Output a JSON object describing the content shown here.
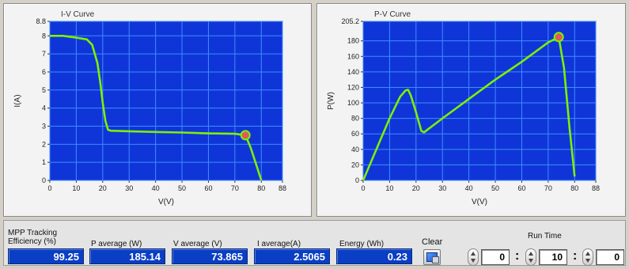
{
  "charts": {
    "iv": {
      "title": "I-V Curve",
      "xlabel": "V(V)",
      "ylabel": "I(A)",
      "x_ticks": [
        "0",
        "10",
        "20",
        "30",
        "40",
        "50",
        "60",
        "70",
        "80",
        "88"
      ],
      "y_ticks": [
        "0",
        "1",
        "2",
        "3",
        "4",
        "5",
        "6",
        "7",
        "8",
        "8.8"
      ]
    },
    "pv": {
      "title": "P-V Curve",
      "xlabel": "V(V)",
      "ylabel": "P(W)",
      "x_ticks": [
        "0",
        "10",
        "20",
        "30",
        "40",
        "50",
        "60",
        "70",
        "80",
        "88"
      ],
      "y_ticks": [
        "0",
        "20",
        "40",
        "60",
        "80",
        "100",
        "120",
        "140",
        "160",
        "180",
        "205.2"
      ]
    }
  },
  "chart_data": [
    {
      "type": "line",
      "title": "I-V Curve",
      "xlabel": "V(V)",
      "ylabel": "I(A)",
      "xlim": [
        0,
        88
      ],
      "ylim": [
        0,
        8.8
      ],
      "grid": true,
      "series_color": "#7cf000",
      "x": [
        0,
        5,
        10,
        14,
        16,
        18,
        19,
        20,
        21,
        22,
        23,
        30,
        40,
        50,
        60,
        70,
        74,
        76,
        78,
        80
      ],
      "y": [
        8.0,
        8.0,
        7.9,
        7.8,
        7.5,
        6.5,
        5.5,
        4.3,
        3.3,
        2.8,
        2.75,
        2.72,
        2.68,
        2.65,
        2.6,
        2.58,
        2.5,
        1.8,
        0.9,
        0.0
      ],
      "marker": {
        "x": 74,
        "y": 2.5,
        "color": "#e05a5a"
      }
    },
    {
      "type": "line",
      "title": "P-V Curve",
      "xlabel": "V(V)",
      "ylabel": "P(W)",
      "xlim": [
        0,
        88
      ],
      "ylim": [
        0,
        205.2
      ],
      "grid": true,
      "series_color": "#7cf000",
      "x": [
        0,
        5,
        10,
        14,
        16,
        17,
        18,
        20,
        22,
        23,
        30,
        40,
        50,
        60,
        70,
        74,
        76,
        78,
        80
      ],
      "y": [
        0,
        40,
        80,
        108,
        116,
        117,
        110,
        88,
        64,
        62,
        80,
        105,
        130,
        153,
        178,
        185,
        145,
        70,
        5
      ],
      "marker": {
        "x": 74,
        "y": 185,
        "color": "#e05a5a"
      }
    }
  ],
  "indicators": [
    {
      "label": "MPP Tracking Efficiency (%)",
      "value": "99.25"
    },
    {
      "label": "P average  (W)",
      "value": "185.14"
    },
    {
      "label": "V average (V)",
      "value": "73.865"
    },
    {
      "label": "I average(A)",
      "value": "2.5065"
    },
    {
      "label": "Energy  (Wh)",
      "value": "0.23"
    }
  ],
  "clear": {
    "label": "Clear"
  },
  "run_time": {
    "label": "Run Time",
    "hours": "0",
    "minutes": "10",
    "seconds": "0",
    "separator": ":"
  }
}
